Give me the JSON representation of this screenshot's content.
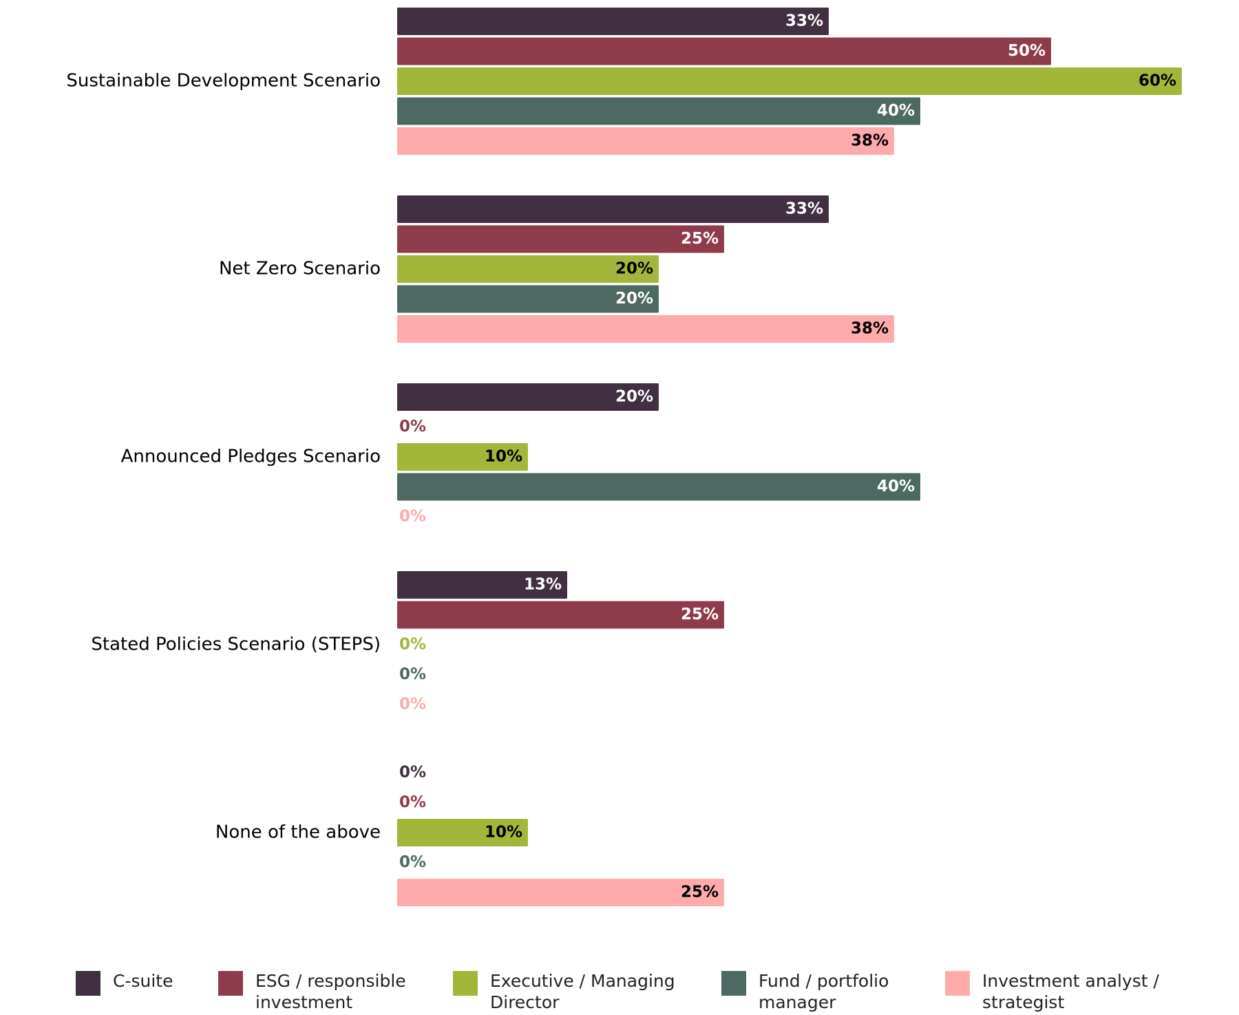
{
  "chart_data": {
    "type": "bar",
    "orientation": "horizontal",
    "title": "",
    "xlabel": "",
    "ylabel": "",
    "xlim": [
      0,
      60
    ],
    "grid": false,
    "legend_position": "bottom",
    "categories": [
      "Sustainable Development Scenario",
      "Net Zero Scenario",
      "Announced Pledges Scenario",
      "Stated Policies Scenario (STEPS)",
      "None of the above"
    ],
    "series": [
      {
        "name": "C-suite",
        "legend_lines": [
          "C-suite"
        ],
        "color": "#403041",
        "label_color": "#ffffff",
        "values": [
          33,
          33,
          20,
          13,
          0
        ],
        "labels": [
          "33%",
          "33%",
          "20%",
          "13%",
          "0%"
        ]
      },
      {
        "name": "ESG / responsible investment",
        "legend_lines": [
          "ESG / responsible",
          "investment"
        ],
        "color": "#8e3c4b",
        "label_color": "#ffffff",
        "values": [
          50,
          25,
          0,
          25,
          0
        ],
        "labels": [
          "50%",
          "25%",
          "0%",
          "25%",
          "0%"
        ]
      },
      {
        "name": "Executive / Managing Director",
        "legend_lines": [
          "Executive / Managing",
          "Director"
        ],
        "color": "#a2b73a",
        "label_color": "#000000",
        "values": [
          60,
          20,
          10,
          0,
          10
        ],
        "labels": [
          "60%",
          "20%",
          "10%",
          "0%",
          "10%"
        ]
      },
      {
        "name": "Fund / portfolio manager",
        "legend_lines": [
          "Fund / portfolio",
          "manager"
        ],
        "color": "#4d6a62",
        "label_color": "#ffffff",
        "values": [
          40,
          20,
          40,
          0,
          0
        ],
        "labels": [
          "40%",
          "20%",
          "40%",
          "0%",
          "0%"
        ]
      },
      {
        "name": "Investment analyst / strategist",
        "legend_lines": [
          "Investment analyst /",
          "strategist"
        ],
        "color": "#ffabab",
        "label_color": "#000000",
        "values": [
          38,
          38,
          0,
          0,
          25
        ],
        "labels": [
          "38%",
          "38%",
          "0%",
          "0%",
          "25%"
        ]
      }
    ]
  }
}
